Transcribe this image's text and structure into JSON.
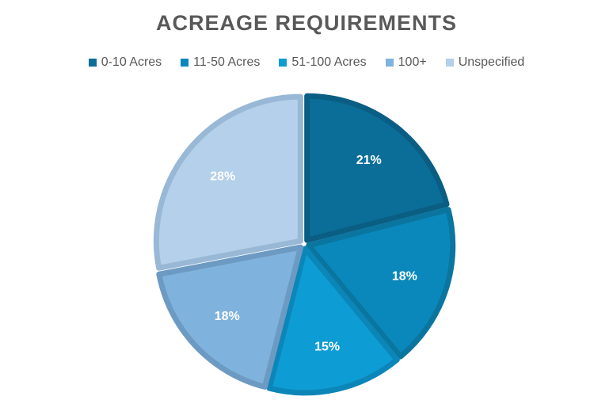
{
  "chart_data": {
    "type": "pie",
    "title": "ACREAGE REQUIREMENTS",
    "legend_position": "top",
    "categories": [
      "0-10 Acres",
      "11-50 Acres",
      "51-100 Acres",
      "100+",
      "Unspecified"
    ],
    "values": [
      21,
      18,
      15,
      18,
      28
    ],
    "data_labels": [
      "21%",
      "18%",
      "15%",
      "18%",
      "28%"
    ],
    "colors": [
      "#0B6E99",
      "#0B88BB",
      "#0E9CD4",
      "#7FB3DD",
      "#B4D0EA"
    ],
    "border_colors": [
      "#0A5E84",
      "#0A759F",
      "#0C86B8",
      "#6C9AC2",
      "#98B8D6"
    ]
  }
}
